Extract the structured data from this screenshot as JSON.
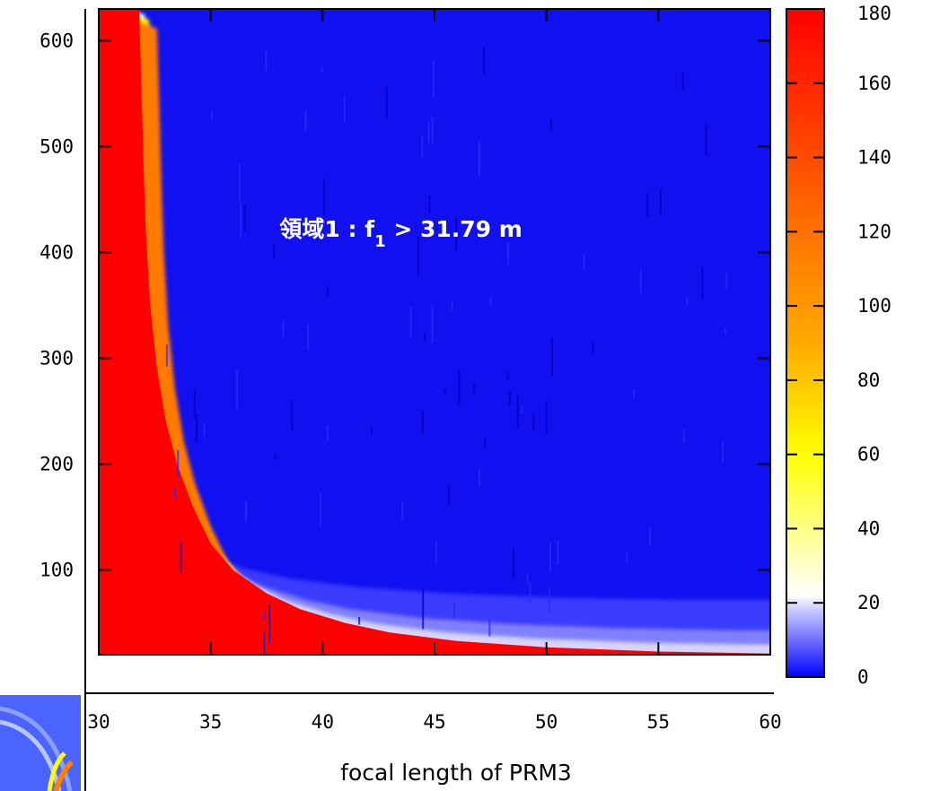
{
  "chart_data": {
    "type": "heatmap",
    "title": "",
    "xlabel": "focal length of PRM3",
    "ylabel": "",
    "xlim": [
      30,
      60
    ],
    "ylim": [
      20,
      630
    ],
    "x_ticks": [
      30,
      35,
      40,
      45,
      50,
      55,
      60
    ],
    "y_ticks": [
      100,
      200,
      300,
      400,
      500,
      600
    ],
    "colorbar": {
      "range": [
        0,
        180
      ],
      "ticks": [
        0,
        20,
        40,
        60,
        80,
        100,
        120,
        140,
        160,
        180
      ],
      "colors": [
        {
          "value": 0,
          "color": "#0000ff"
        },
        {
          "value": 18,
          "color": "#c8c8ff"
        },
        {
          "value": 22,
          "color": "#ffffff"
        },
        {
          "value": 60,
          "color": "#ffff00"
        },
        {
          "value": 90,
          "color": "#ffaa00"
        },
        {
          "value": 180,
          "color": "#ff0000"
        }
      ]
    },
    "boundary_curve": {
      "description_value": "f1 > 31.79 m",
      "x": [
        31.8,
        31.9,
        32.0,
        32.1,
        32.3,
        32.6,
        33.0,
        33.5,
        34.2,
        35.0,
        36.0,
        37.5,
        39.0,
        41.0,
        43.0,
        46.0,
        50.0,
        55.0,
        60.0
      ],
      "y": [
        630,
        560,
        480,
        420,
        350,
        290,
        240,
        200,
        160,
        125,
        100,
        78,
        63,
        50,
        41,
        33,
        27,
        23,
        21
      ]
    },
    "annotation": {
      "prefix": "領域1 : f",
      "subscript": "1",
      "suffix": " > 31.79 m",
      "x": 43.5,
      "y": 415
    }
  }
}
